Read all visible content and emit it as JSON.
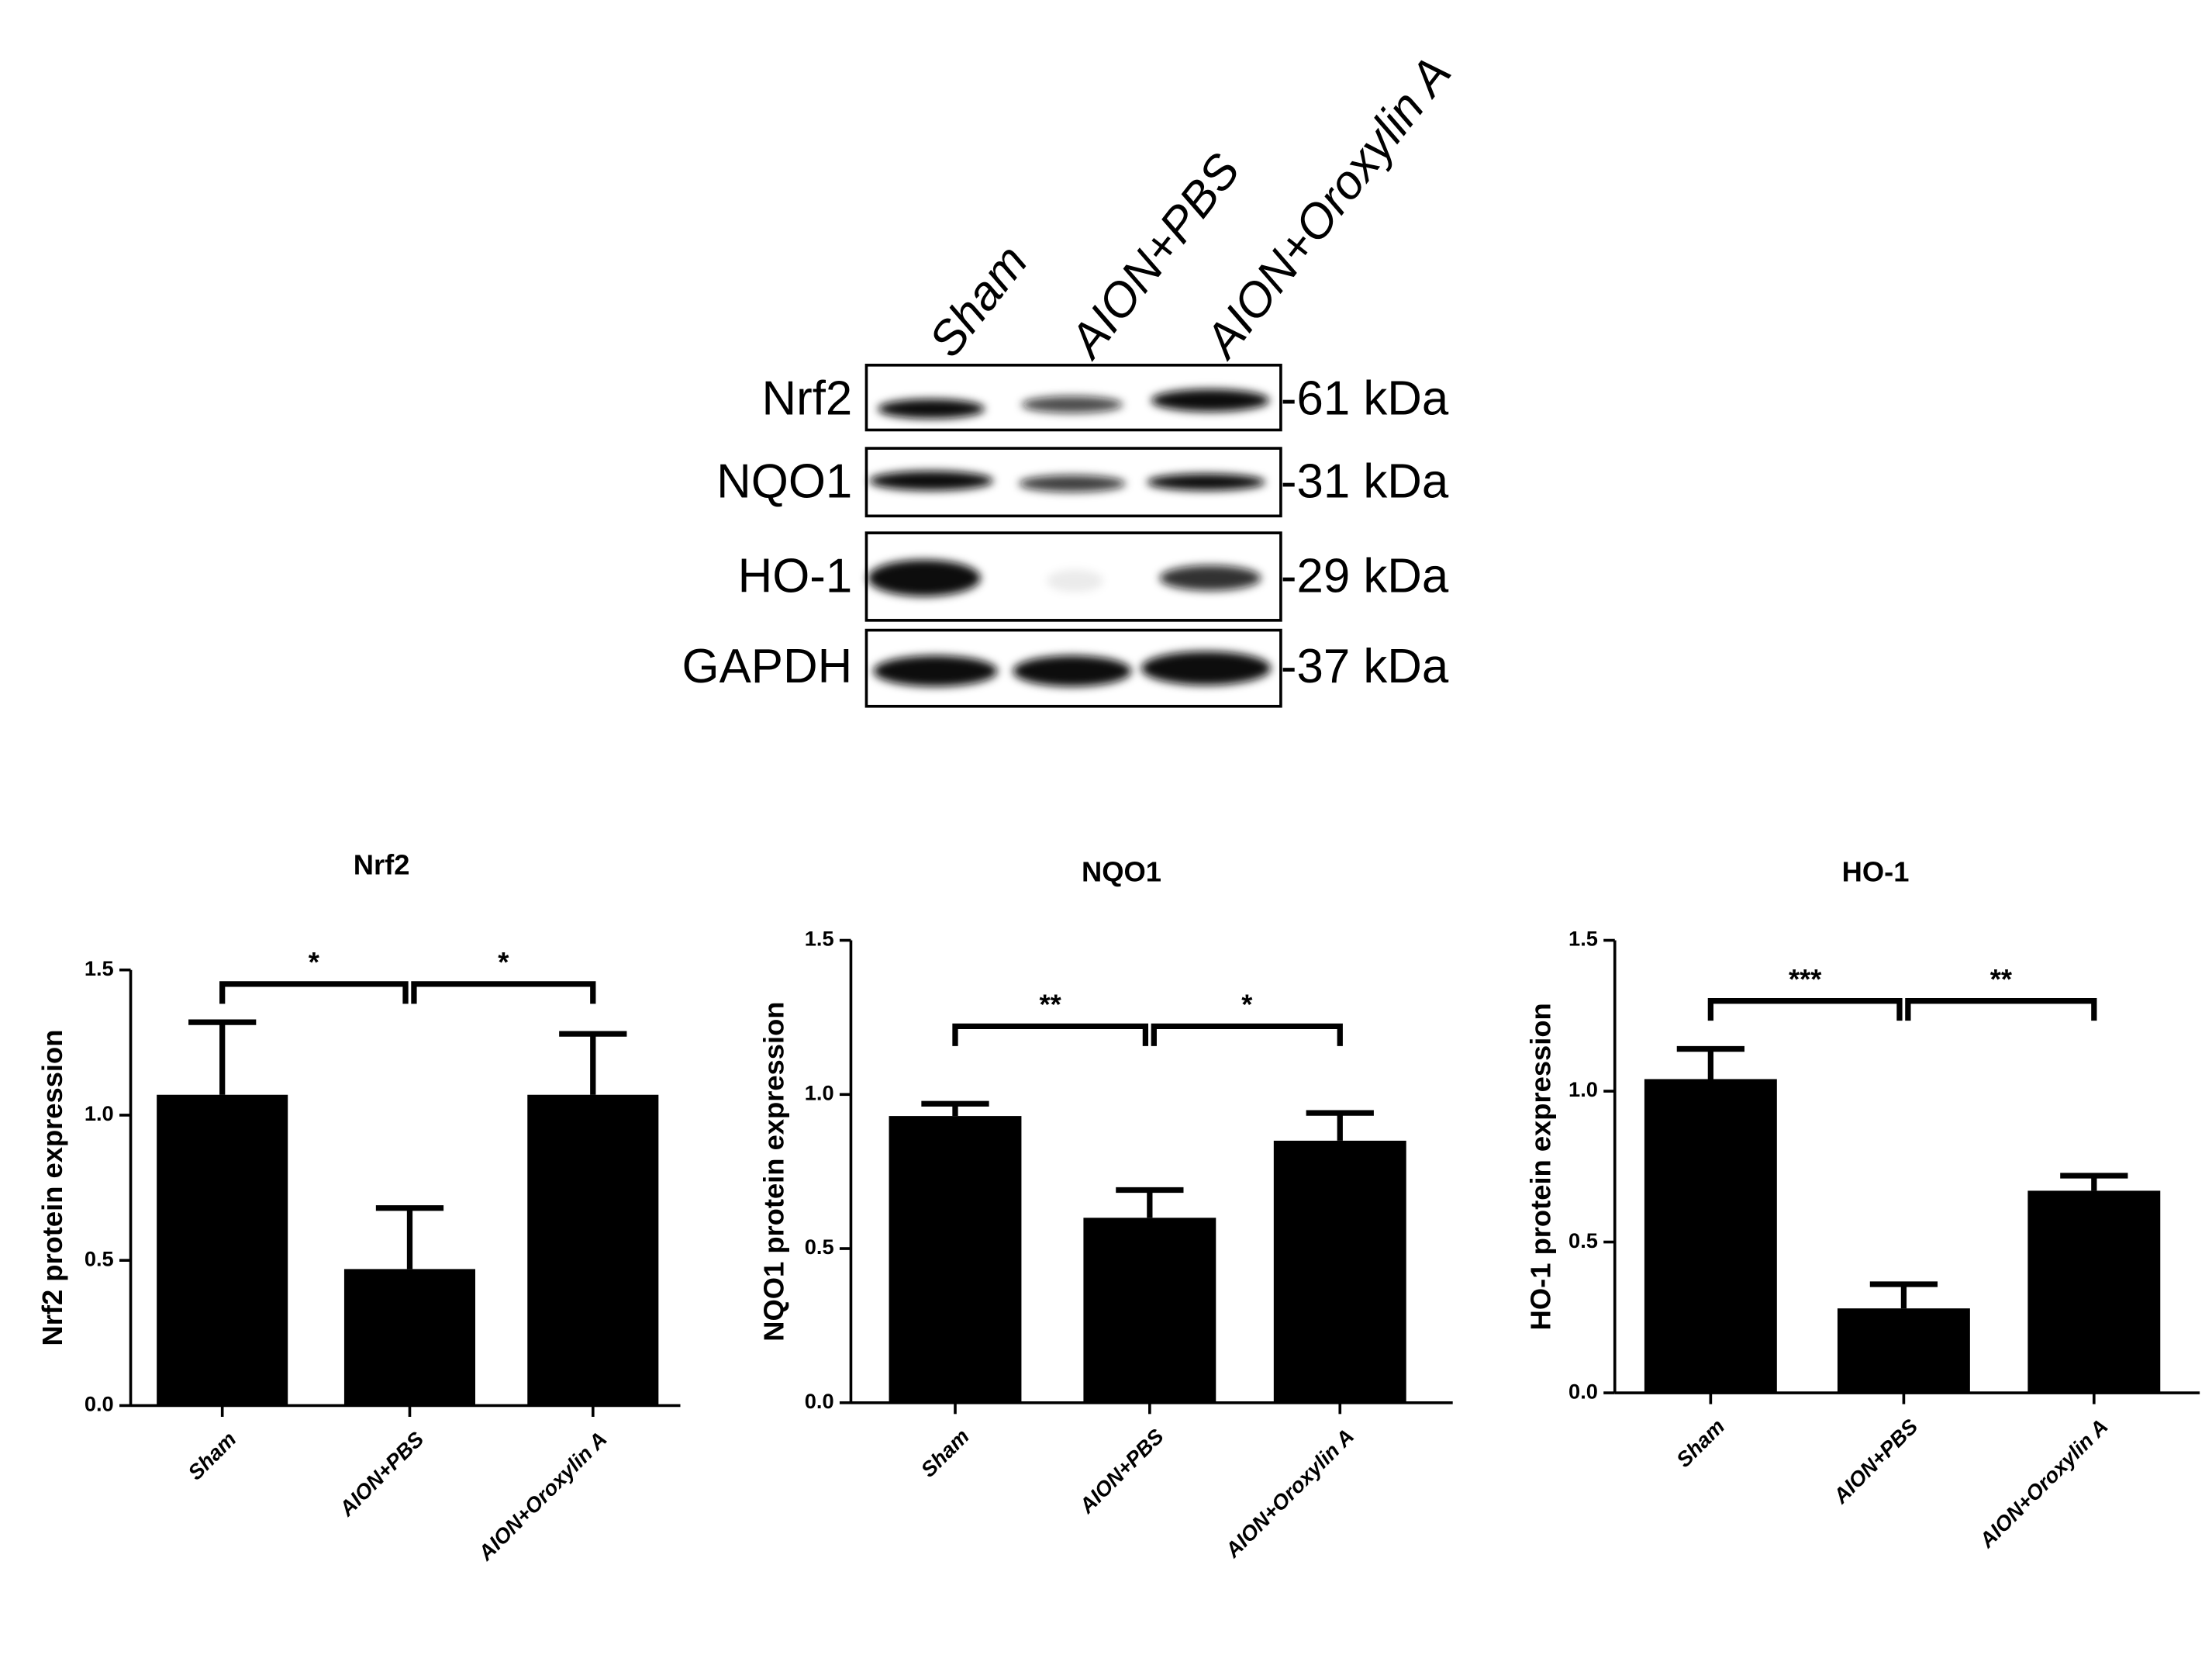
{
  "blot": {
    "lanes": [
      "Sham",
      "AION+PBS",
      "AION+Oroxylin A"
    ],
    "rows": [
      {
        "protein": "Nrf2",
        "size": "-61 kDa"
      },
      {
        "protein": "NQO1",
        "size": "-31 kDa"
      },
      {
        "protein": "HO-1",
        "size": "-29 kDa"
      },
      {
        "protein": "GAPDH",
        "size": "-37 kDa"
      }
    ]
  },
  "chart_data": [
    {
      "type": "bar",
      "title": "Nrf2",
      "y_label": "Nrf2 protein expression",
      "color": "#000000",
      "categories": [
        "Sham",
        "AION+PBS",
        "AION+Oroxylin A"
      ],
      "values": [
        1.07,
        0.47,
        1.07
      ],
      "errors": [
        0.25,
        0.21,
        0.21
      ],
      "ylim": [
        0,
        1.5
      ],
      "yticks": [
        {
          "value": 0,
          "label": "0.0"
        },
        0.5,
        {
          "value": 1,
          "label": "1.0"
        },
        1.5
      ],
      "comparisons": [
        {
          "between": [
            0,
            1
          ],
          "label": "*"
        },
        {
          "between": [
            1,
            2
          ],
          "label": "*"
        }
      ]
    },
    {
      "type": "bar",
      "title": "NQO1",
      "y_label": "NQO1 protein expression",
      "color": "#000000",
      "categories": [
        "Sham",
        "AION+PBS",
        "AION+Oroxylin A"
      ],
      "values": [
        0.93,
        0.6,
        0.85
      ],
      "errors": [
        0.04,
        0.09,
        0.09
      ],
      "ylim": [
        0,
        1.5
      ],
      "yticks": [
        {
          "value": 0,
          "label": "0.0"
        },
        0.5,
        {
          "value": 1,
          "label": "1.0"
        },
        1.5
      ],
      "comparisons": [
        {
          "between": [
            0,
            1
          ],
          "label": "**"
        },
        {
          "between": [
            1,
            2
          ],
          "label": "*"
        }
      ]
    },
    {
      "type": "bar",
      "title": "HO-1",
      "y_label": "HO-1 protein expression",
      "color": "#000000",
      "categories": [
        "Sham",
        "AION+PBS",
        "AION+Oroxylin A"
      ],
      "values": [
        1.04,
        0.28,
        0.67
      ],
      "errors": [
        0.1,
        0.08,
        0.05
      ],
      "ylim": [
        0,
        1.5
      ],
      "yticks": [
        {
          "value": 0,
          "label": "0.0"
        },
        0.5,
        {
          "value": 1,
          "label": "1.0"
        },
        1.5
      ],
      "comparisons": [
        {
          "between": [
            0,
            1
          ],
          "label": "***"
        },
        {
          "between": [
            1,
            2
          ],
          "label": "**"
        }
      ]
    }
  ]
}
